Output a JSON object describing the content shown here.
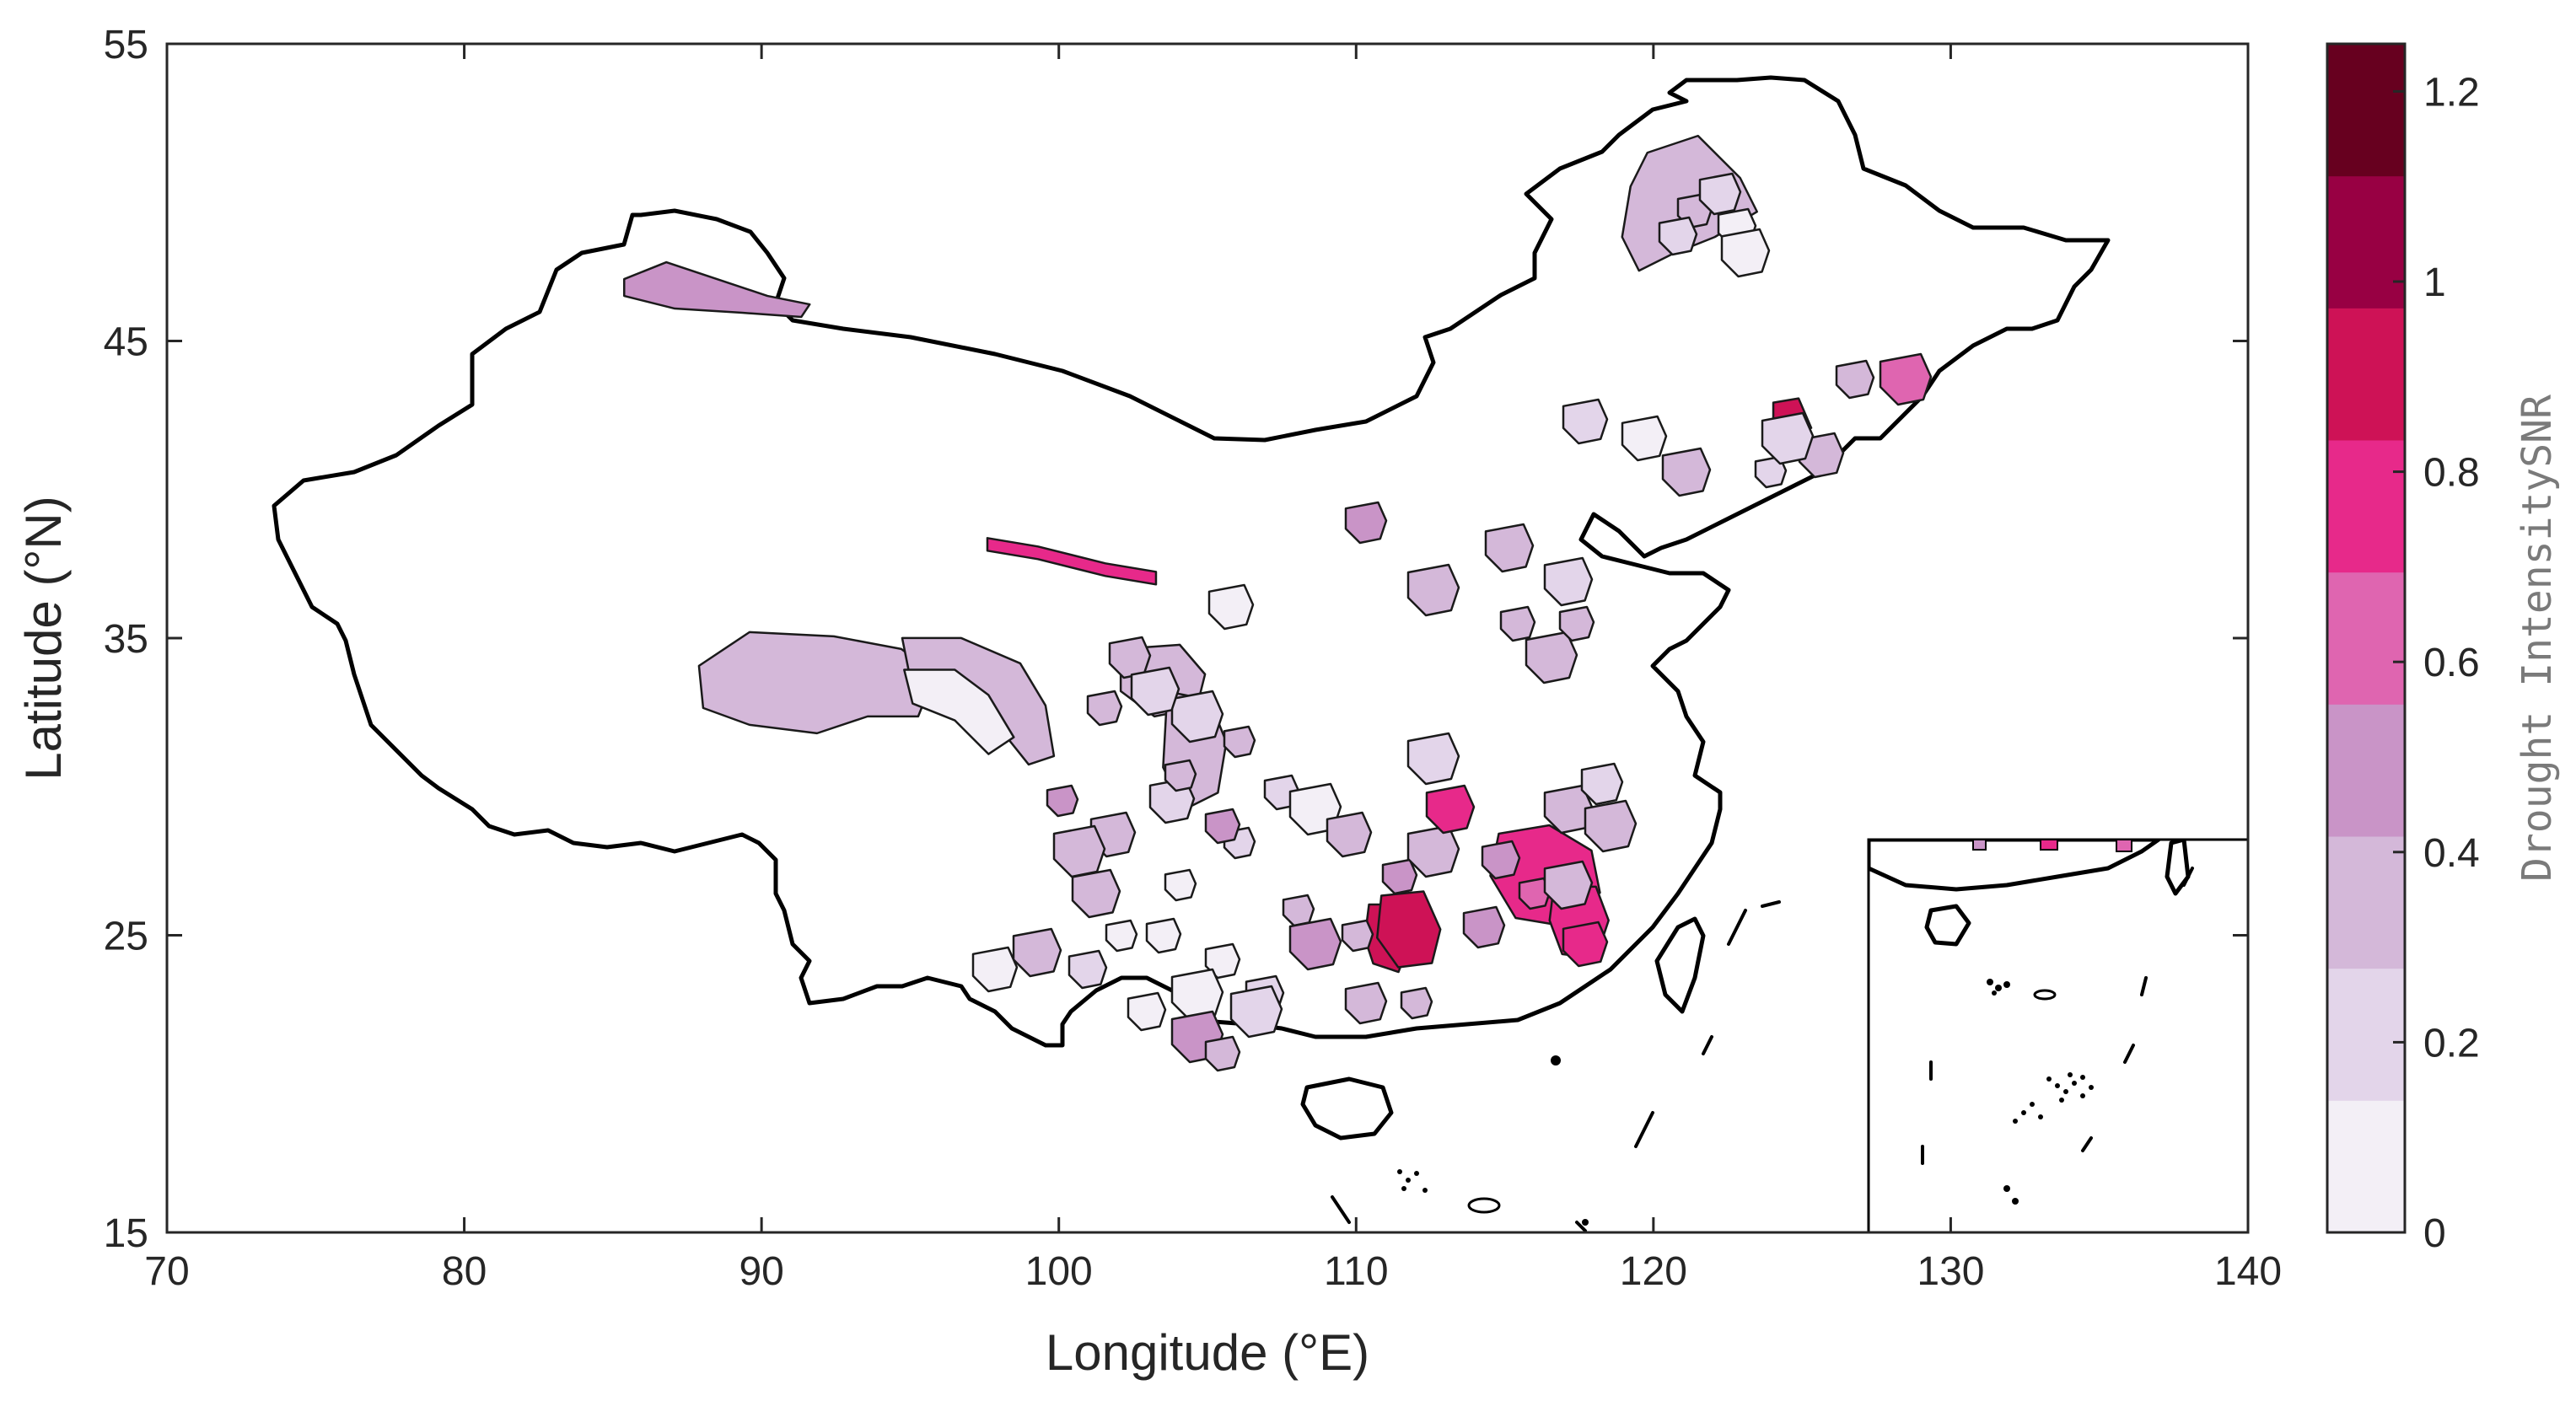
{
  "map": {
    "xlabel": "Longitude (°E)",
    "ylabel": "Latitude (°N)",
    "xlim": [
      70,
      140
    ],
    "ylim": [
      15,
      55
    ],
    "xticks": [
      "70",
      "80",
      "90",
      "100",
      "110",
      "120",
      "130",
      "140"
    ],
    "yticks": [
      "15",
      "25",
      "35",
      "45",
      "55"
    ],
    "inset": true,
    "colorbar": {
      "label": "Drought IntensitySNR",
      "range": [
        0,
        1.25
      ],
      "ticks": [
        "0",
        "0.2",
        "0.4",
        "0.6",
        "0.8",
        "1",
        "1.2"
      ],
      "colors": [
        "#f3eff6",
        "#e3d5ea",
        "#d4b8d9",
        "#c994c7",
        "#df65b0",
        "#e7298a",
        "#ce1256",
        "#980043",
        "#67001f"
      ]
    },
    "regions": [
      {
        "name": "northwest-basin",
        "lon": 88.5,
        "lat": 46.8,
        "level": 3
      },
      {
        "name": "qinghai-large",
        "lon": 93.0,
        "lat": 33.5,
        "level": 2
      },
      {
        "name": "qinghai-east",
        "lon": 97.0,
        "lat": 33.3,
        "level": 2
      },
      {
        "name": "qinghai-inner",
        "lon": 96.5,
        "lat": 32.8,
        "level": 0
      },
      {
        "name": "gansu-strip",
        "lon": 101.0,
        "lat": 37.8,
        "level": 5
      },
      {
        "name": "sichuan-north",
        "lon": 103.5,
        "lat": 33.5,
        "level": 2
      },
      {
        "name": "sichuan-central",
        "lon": 104.5,
        "lat": 31.5,
        "level": 2
      },
      {
        "name": "northeast-large",
        "lon": 121.5,
        "lat": 48.5,
        "level": 2
      },
      {
        "name": "jilin-red",
        "lon": 124.6,
        "lat": 42.5,
        "level": 6
      },
      {
        "name": "guangxi-1",
        "lon": 111.0,
        "lat": 24.9,
        "level": 6
      },
      {
        "name": "guangxi-2",
        "lon": 111.7,
        "lat": 25.2,
        "level": 6
      },
      {
        "name": "hunan-jiangxi",
        "lon": 116.5,
        "lat": 27.0,
        "level": 5
      },
      {
        "name": "fujian",
        "lon": 117.5,
        "lat": 25.5,
        "level": 5
      }
    ]
  }
}
